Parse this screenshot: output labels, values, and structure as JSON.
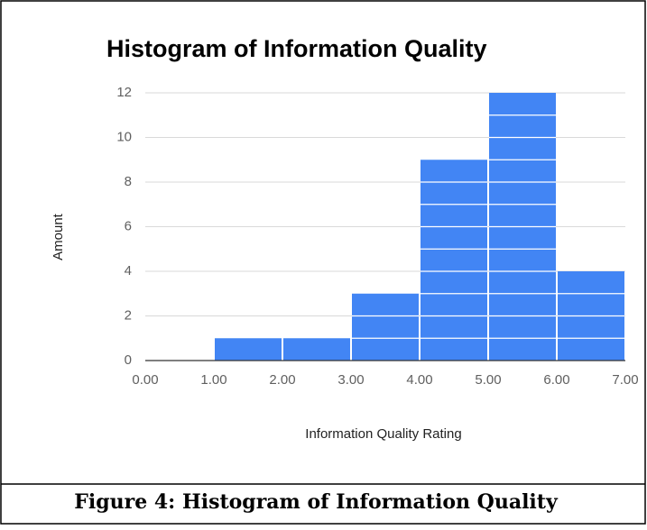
{
  "chart_data": {
    "type": "histogram",
    "title": "Histogram of Information Quality",
    "xlabel": "Information Quality Rating",
    "ylabel": "Amount",
    "bins": [
      0,
      1,
      2,
      3,
      4,
      5,
      6,
      7
    ],
    "values": [
      0,
      1,
      1,
      3,
      9,
      12,
      4
    ],
    "color": "#4285f4",
    "xlim": [
      0,
      7
    ],
    "xticks": [
      {
        "value": 0,
        "label": "0.00"
      },
      {
        "value": 1,
        "label": "1.00"
      },
      {
        "value": 2,
        "label": "2.00"
      },
      {
        "value": 3,
        "label": "3.00"
      },
      {
        "value": 4,
        "label": "4.00"
      },
      {
        "value": 5,
        "label": "5.00"
      },
      {
        "value": 6,
        "label": "6.00"
      },
      {
        "value": 7,
        "label": "7.00"
      }
    ],
    "ylim": [
      0,
      12
    ],
    "yticks": [
      0,
      2,
      4,
      6,
      8,
      10,
      12
    ],
    "grid": true
  },
  "caption": "Figure 4: Histogram of Information Quality"
}
